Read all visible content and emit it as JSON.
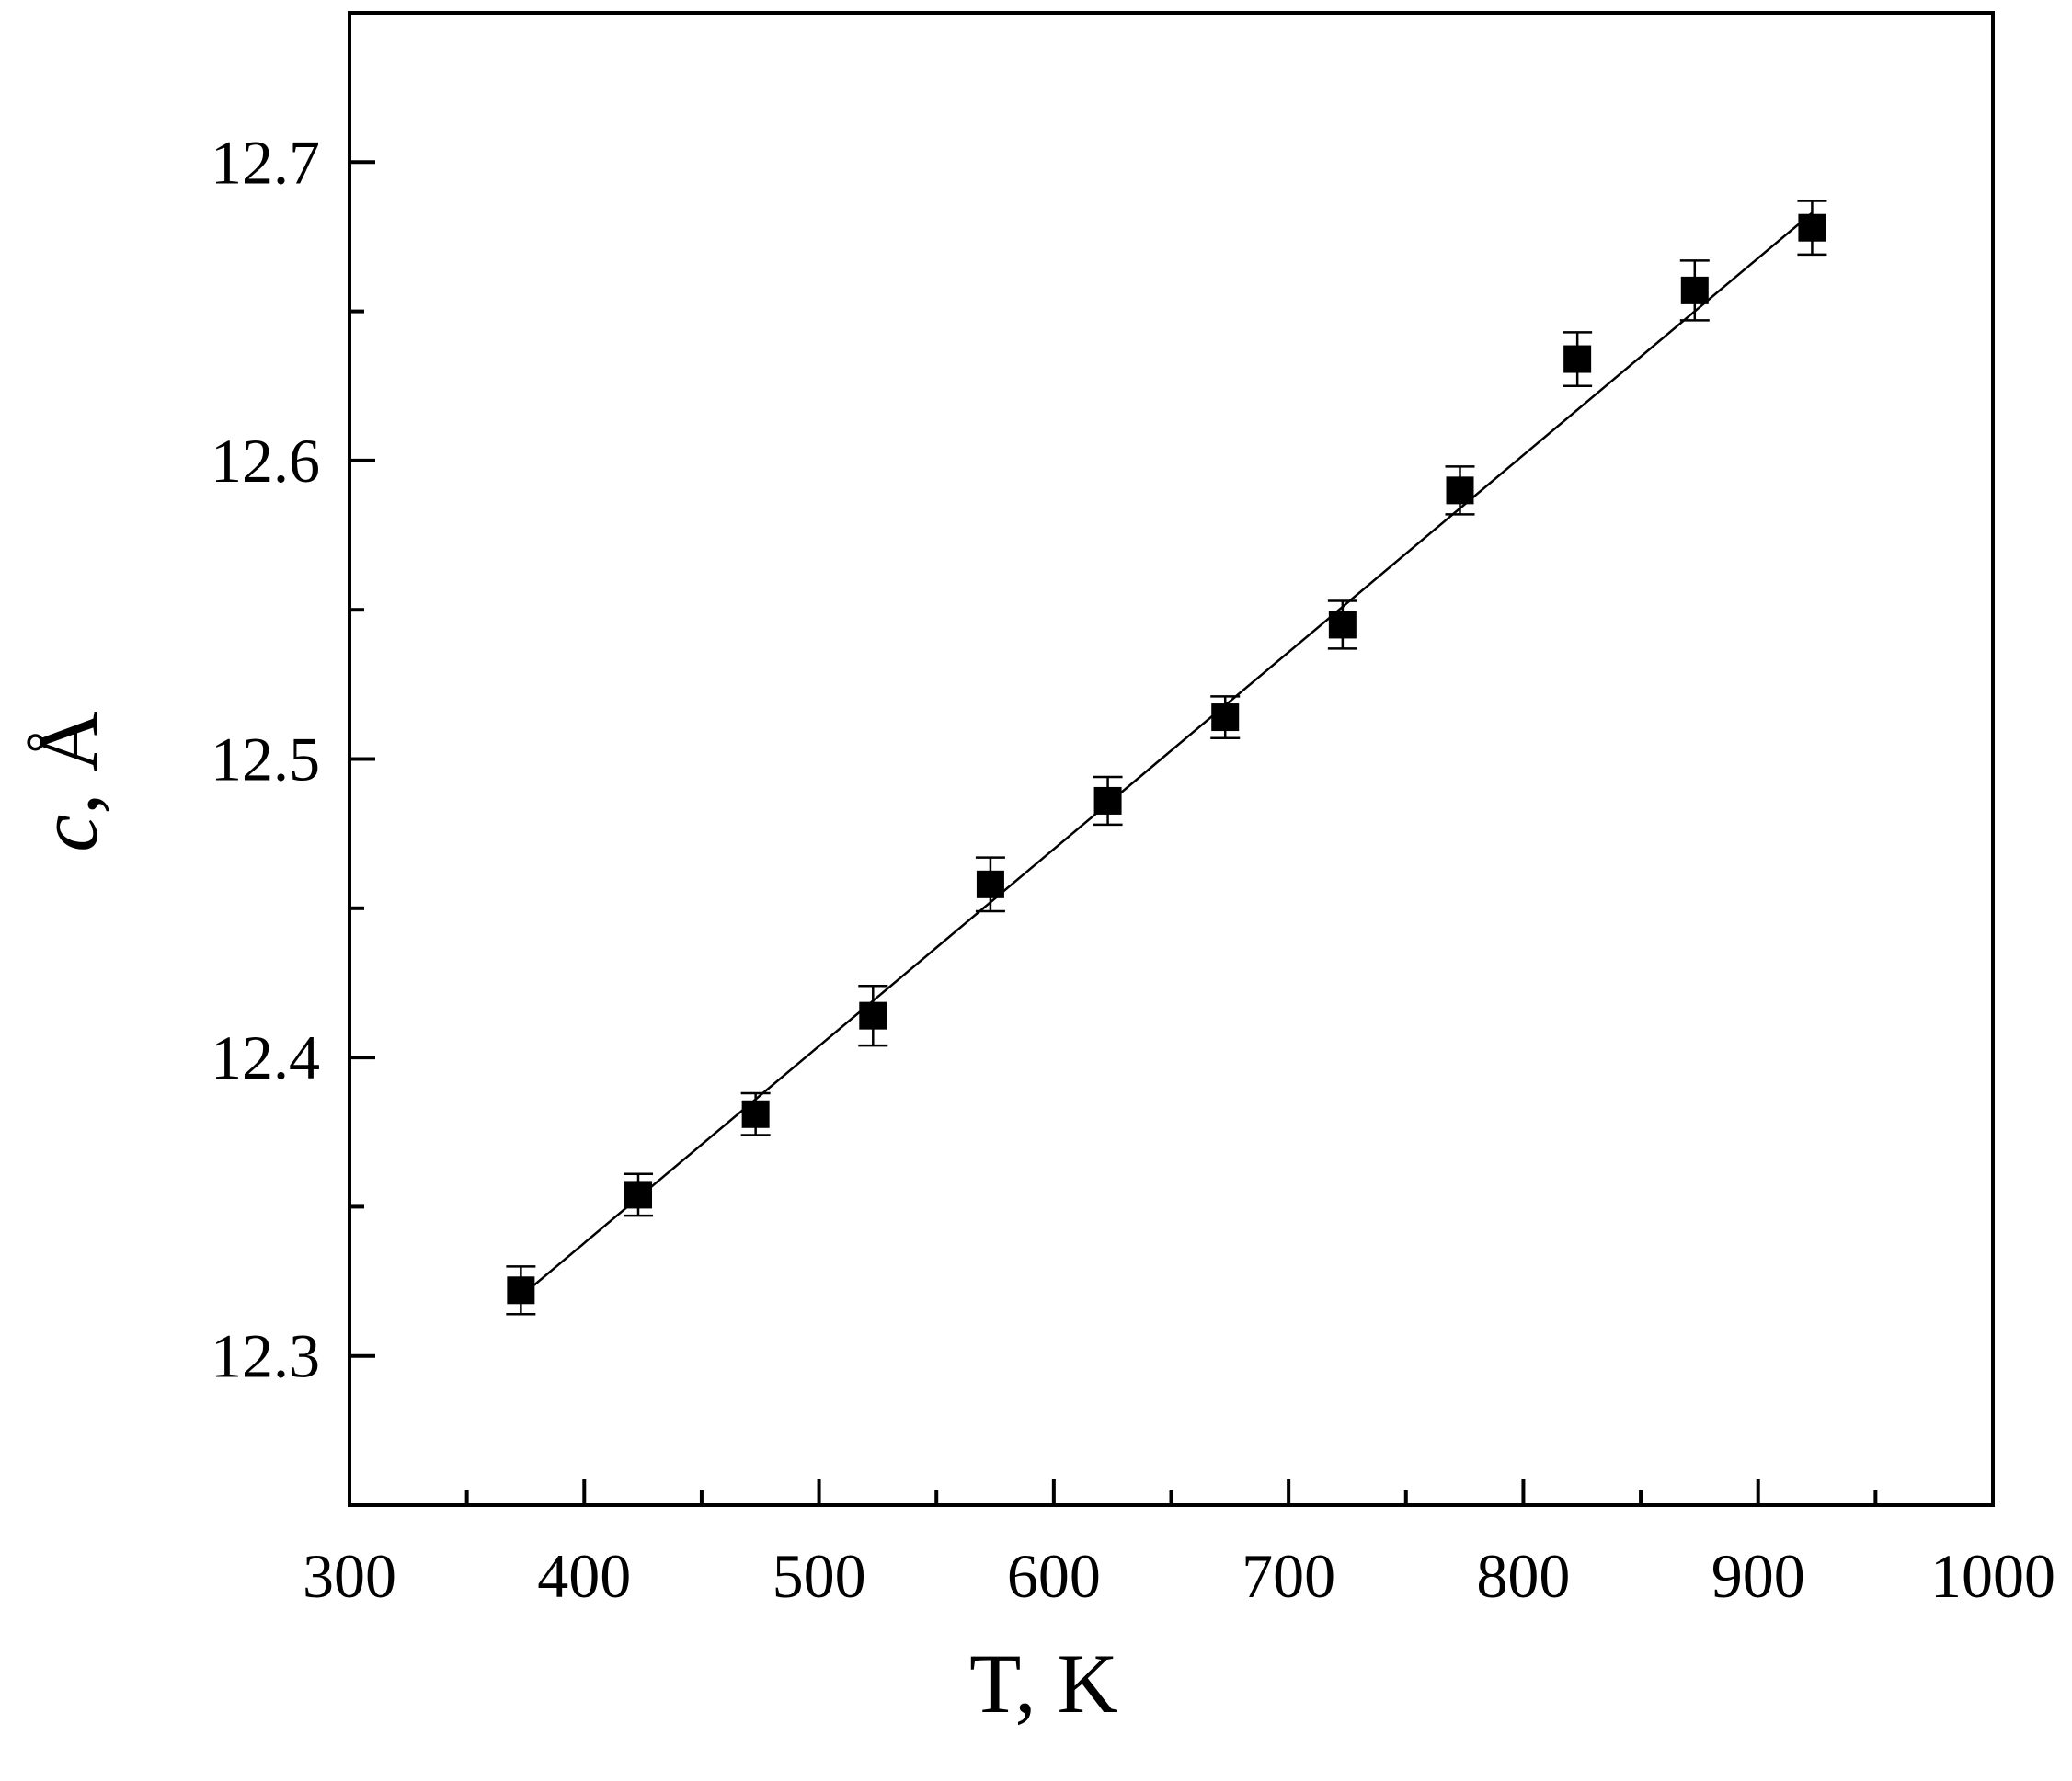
{
  "chart_data": {
    "type": "scatter",
    "xlabel": "T, K",
    "ylabel_symbol": "c",
    "ylabel_unit": ", Å",
    "xlim": [
      300,
      1000
    ],
    "ylim": [
      12.25,
      12.75
    ],
    "x_ticks_major": [
      300,
      400,
      500,
      600,
      700,
      800,
      900,
      1000
    ],
    "x_ticks_minor": [
      350,
      450,
      550,
      650,
      750,
      850,
      950
    ],
    "y_ticks_major": [
      12.3,
      12.4,
      12.5,
      12.6,
      12.7
    ],
    "y_ticks_minor": [
      12.25,
      12.35,
      12.45,
      12.55,
      12.65
    ],
    "x_tick_labels": [
      "300",
      "400",
      "500",
      "600",
      "700",
      "800",
      "900",
      "1000"
    ],
    "y_tick_labels": [
      "12.3",
      "12.4",
      "12.5",
      "12.6",
      "12.7"
    ],
    "grid": false,
    "series": [
      {
        "x": [
          373,
          423,
          473,
          523,
          573,
          623,
          673,
          723,
          773,
          823,
          873,
          923
        ],
        "y": [
          12.322,
          12.354,
          12.381,
          12.414,
          12.458,
          12.486,
          12.514,
          12.545,
          12.59,
          12.634,
          12.657,
          12.678
        ],
        "yerr": [
          0.008,
          0.007,
          0.007,
          0.01,
          0.009,
          0.008,
          0.007,
          0.008,
          0.008,
          0.009,
          0.01,
          0.009
        ],
        "marker": "square",
        "color": "#000000"
      }
    ],
    "fit_line": {
      "x": [
        373,
        923
      ],
      "y": [
        12.32,
        12.683
      ],
      "color": "#000000"
    }
  }
}
